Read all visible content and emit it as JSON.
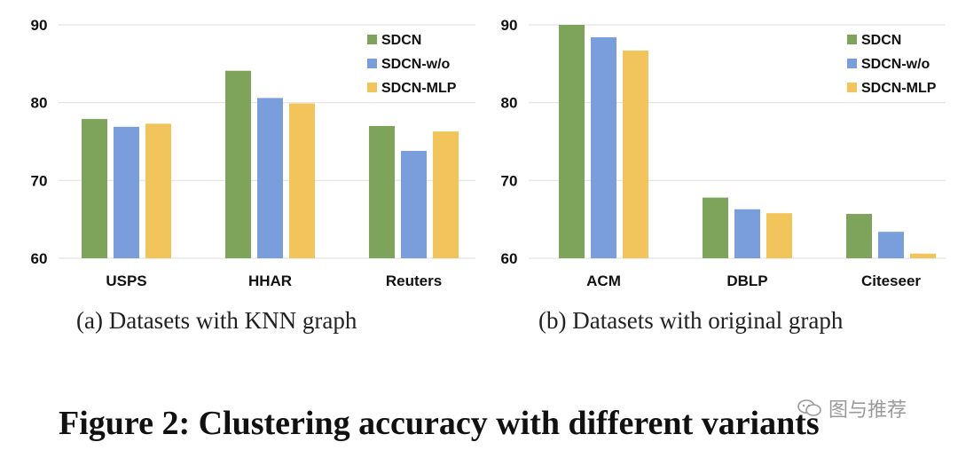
{
  "colors": {
    "SDCN": "#7ea35a",
    "SDCN-w/o": "#7a9edb",
    "SDCN-MLP": "#f2c55c",
    "gridline": "#e3e3e3"
  },
  "chart_data": [
    {
      "type": "bar",
      "categories": [
        "USPS",
        "HHAR",
        "Reuters"
      ],
      "series": [
        {
          "name": "SDCN",
          "values": [
            77.9,
            84.1,
            77.0
          ]
        },
        {
          "name": "SDCN-w/o",
          "values": [
            76.9,
            80.6,
            73.8
          ]
        },
        {
          "name": "SDCN-MLP",
          "values": [
            77.3,
            79.9,
            76.3
          ]
        }
      ],
      "ylim": [
        60,
        90
      ],
      "yticks": [
        60,
        70,
        80,
        90
      ],
      "grid": true,
      "legend": "top-right",
      "caption": "(a)  Datasets with KNN graph"
    },
    {
      "type": "bar",
      "categories": [
        "ACM",
        "DBLP",
        "Citeseer"
      ],
      "series": [
        {
          "name": "SDCN",
          "values": [
            90.0,
            67.8,
            65.7
          ]
        },
        {
          "name": "SDCN-w/o",
          "values": [
            88.4,
            66.3,
            63.4
          ]
        },
        {
          "name": "SDCN-MLP",
          "values": [
            86.7,
            65.8,
            60.6
          ]
        }
      ],
      "ylim": [
        60,
        90
      ],
      "yticks": [
        60,
        70,
        80,
        90
      ],
      "grid": true,
      "legend": "top-right",
      "caption": "(b)  Datasets with original graph"
    }
  ],
  "figure_title": "Figure 2: Clustering accuracy with different variants",
  "watermark": {
    "text": "图与推荐",
    "icon": "wechat-icon"
  }
}
